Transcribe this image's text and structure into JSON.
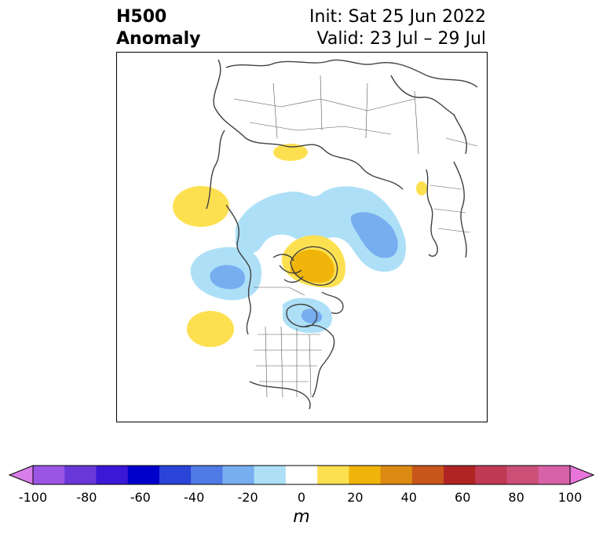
{
  "title": {
    "left_line1": "H500",
    "left_line2": "Anomaly",
    "right_line1": "Init: Sat 25 Jun 2022",
    "right_line2": "Valid: 23 Jul – 29 Jul"
  },
  "colorbar": {
    "unit": "m",
    "ticks": [
      "-100",
      "-80",
      "-60",
      "-40",
      "-20",
      "0",
      "20",
      "40",
      "60",
      "80",
      "100"
    ],
    "colors": [
      "#d77ee9",
      "#9b55e4",
      "#6a38d8",
      "#3b18d6",
      "#0000cc",
      "#2a44d8",
      "#4f7be6",
      "#77aef0",
      "#ade0f7",
      "#ffffff",
      "#fde050",
      "#f0b40b",
      "#dd8a12",
      "#c8561a",
      "#b02424",
      "#c03a55",
      "#cc4f78",
      "#d862a8",
      "#e775d9"
    ],
    "under_color": "#d77ee9",
    "over_color": "#e775d9"
  }
}
